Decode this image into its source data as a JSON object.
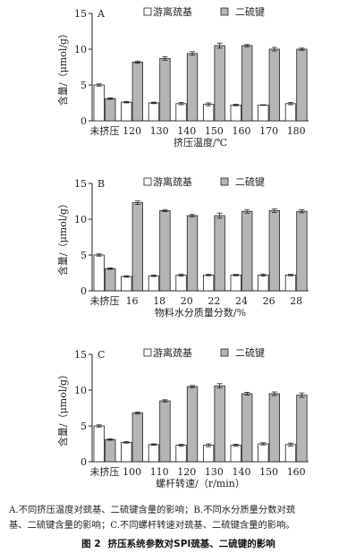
{
  "chart_data": [
    {
      "type": "bar",
      "panel_label": "A",
      "categories": [
        "未挤压",
        "120",
        "130",
        "140",
        "150",
        "160",
        "170",
        "180"
      ],
      "series": [
        {
          "name": "游离巯基",
          "values": [
            5.0,
            2.6,
            2.5,
            2.4,
            2.3,
            2.2,
            2.2,
            2.4
          ],
          "errors": [
            0.15,
            0.1,
            0.1,
            0.15,
            0.2,
            0.1,
            0.05,
            0.15
          ],
          "color": "#ffffff"
        },
        {
          "name": "二硫键",
          "values": [
            3.1,
            8.2,
            8.7,
            9.4,
            10.5,
            10.5,
            10.0,
            10.0
          ],
          "errors": [
            0.1,
            0.15,
            0.25,
            0.25,
            0.35,
            0.15,
            0.25,
            0.15
          ],
          "color": "#b5b5b5"
        }
      ],
      "xlabel": "挤压温度/℃",
      "ylabel": "含量/（μmol/g）",
      "ylim": [
        0,
        15
      ],
      "yticks": [
        0,
        5,
        10,
        15
      ],
      "legend": "top"
    },
    {
      "type": "bar",
      "panel_label": "B",
      "categories": [
        "未挤压",
        "16",
        "18",
        "20",
        "22",
        "24",
        "26",
        "28"
      ],
      "series": [
        {
          "name": "游离巯基",
          "values": [
            5.0,
            2.0,
            2.1,
            2.2,
            2.2,
            2.2,
            2.2,
            2.2
          ],
          "errors": [
            0.15,
            0.1,
            0.1,
            0.15,
            0.1,
            0.1,
            0.15,
            0.1
          ],
          "color": "#ffffff"
        },
        {
          "name": "二硫键",
          "values": [
            3.1,
            12.3,
            11.2,
            10.5,
            10.5,
            11.1,
            11.2,
            11.1
          ],
          "errors": [
            0.1,
            0.25,
            0.15,
            0.15,
            0.35,
            0.25,
            0.25,
            0.2
          ],
          "color": "#b5b5b5"
        }
      ],
      "xlabel": "物料水分质量分数/%",
      "ylabel": "含量/（μmol/g）",
      "ylim": [
        0,
        15
      ],
      "yticks": [
        0,
        5,
        10,
        15
      ],
      "legend": "top"
    },
    {
      "type": "bar",
      "panel_label": "C",
      "categories": [
        "未挤压",
        "100",
        "110",
        "120",
        "130",
        "140",
        "150",
        "160"
      ],
      "series": [
        {
          "name": "游离巯基",
          "values": [
            5.0,
            2.7,
            2.4,
            2.3,
            2.3,
            2.3,
            2.5,
            2.4
          ],
          "errors": [
            0.15,
            0.1,
            0.1,
            0.15,
            0.2,
            0.15,
            0.15,
            0.2
          ],
          "color": "#ffffff"
        },
        {
          "name": "二硫键",
          "values": [
            3.1,
            6.8,
            8.5,
            10.5,
            10.6,
            9.5,
            9.5,
            9.3
          ],
          "errors": [
            0.1,
            0.15,
            0.15,
            0.15,
            0.3,
            0.2,
            0.25,
            0.3
          ],
          "color": "#b5b5b5"
        }
      ],
      "xlabel": "螺杆转速/（r/min）",
      "ylabel": "含量/（μmol/g）",
      "ylim": [
        0,
        15
      ],
      "yticks": [
        0,
        5,
        10,
        15
      ],
      "legend": "top"
    }
  ],
  "caption": {
    "line1": "A.不同挤压温度对巯基、二硫键含量的影响；B.不同水分质量分数对巯",
    "line2": "基、二硫键含量的影响；C.不同螺杆转速对巯基、二硫键含量的影响。",
    "figure_number": "图 2",
    "figure_title": "挤压系统参数对SPI巯基、二硫键的影响"
  }
}
